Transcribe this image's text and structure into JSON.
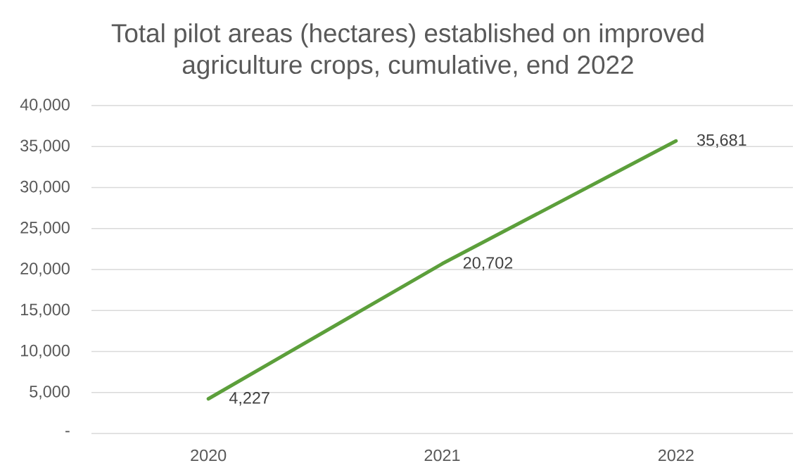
{
  "chart_data": {
    "type": "line",
    "title": "Total pilot areas (hectares) established on improved agriculture crops, cumulative, end 2022",
    "categories": [
      "2020",
      "2021",
      "2022"
    ],
    "series": [
      {
        "color": "#5c9f3b",
        "values": [
          4227,
          20702,
          35681
        ],
        "value_labels": [
          "4,227",
          "20,702",
          "35,681"
        ]
      }
    ],
    "ylim": [
      0,
      40000
    ],
    "yticks": [
      {
        "value": 0,
        "label": "-"
      },
      {
        "value": 5000,
        "label": "5,000"
      },
      {
        "value": 10000,
        "label": "10,000"
      },
      {
        "value": 15000,
        "label": "15,000"
      },
      {
        "value": 20000,
        "label": "20,000"
      },
      {
        "value": 25000,
        "label": "25,000"
      },
      {
        "value": 30000,
        "label": "30,000"
      },
      {
        "value": 35000,
        "label": "35,000"
      },
      {
        "value": 40000,
        "label": "40,000"
      }
    ],
    "grid": "y",
    "marker": "none",
    "line_style": "solid"
  }
}
